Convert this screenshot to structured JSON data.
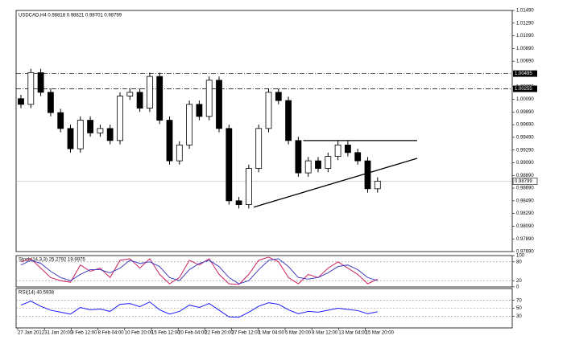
{
  "chart_data": [
    {
      "type": "candlestick",
      "title": "USDCAD,H4  0.98818 0.98821 0.98701 0.98799",
      "time_labels": [
        "27 Jan 2012",
        "31 Jan 20:00",
        "3 Feb 12:00",
        "8 Feb 04:00",
        "10 Feb 20:00",
        "15 Feb 12:00",
        "20 Feb 04:00",
        "22 Feb 20:00",
        "27 Feb 12:00",
        "1 Mar 04:00",
        "5 Mar 20:00",
        "8 Mar 12:00",
        "13 Mar 04:00",
        "15 Mar 20:00"
      ],
      "open": [
        1.001,
        1.0001,
        1.0051,
        1.002,
        0.9988,
        0.9963,
        0.9931,
        0.9976,
        0.9956,
        0.9963,
        0.9944,
        1.0014,
        1.002,
        0.9995,
        1.0045,
        0.9976,
        0.9912,
        0.9937,
        1.0001,
        0.9982,
        1.0039,
        0.9963,
        0.9849,
        0.9843,
        0.99,
        0.9963,
        1.002,
        1.0007,
        0.9944,
        0.9893,
        0.9912,
        0.99,
        0.9919,
        0.9937,
        0.9925,
        0.9912,
        0.9868
      ],
      "high": [
        1.0016,
        1.0057,
        1.0057,
        1.0026,
        0.9994,
        0.9969,
        0.9982,
        0.9982,
        0.9969,
        0.9969,
        1.002,
        1.0026,
        1.0026,
        1.0051,
        1.0051,
        0.9982,
        0.9943,
        1.0007,
        1.0007,
        1.0045,
        1.0045,
        0.9969,
        0.9855,
        0.9906,
        0.9969,
        1.0026,
        1.0026,
        1.0013,
        0.995,
        0.9918,
        0.9918,
        0.9925,
        0.9943,
        0.9943,
        0.9931,
        0.9918,
        0.9886
      ],
      "low": [
        0.9995,
        0.9995,
        1.0014,
        0.9982,
        0.9957,
        0.9925,
        0.9925,
        0.995,
        0.995,
        0.9938,
        0.9938,
        1.0008,
        0.9989,
        0.9989,
        0.997,
        0.9906,
        0.9906,
        0.9931,
        0.9976,
        0.9976,
        0.9957,
        0.9843,
        0.9837,
        0.9837,
        0.9894,
        0.9957,
        1.0001,
        0.9938,
        0.9887,
        0.9887,
        0.9894,
        0.9894,
        0.9913,
        0.9919,
        0.9906,
        0.9862,
        0.9862
      ],
      "close": [
        1.0001,
        1.0051,
        1.002,
        0.9988,
        0.9963,
        0.9931,
        0.9976,
        0.9956,
        0.9963,
        0.9944,
        1.0014,
        1.002,
        0.9995,
        1.0045,
        0.9976,
        0.9912,
        0.9937,
        1.0001,
        0.9982,
        1.0039,
        0.9963,
        0.9849,
        0.9843,
        0.99,
        0.9963,
        1.002,
        1.0007,
        0.9944,
        0.9893,
        0.9912,
        0.99,
        0.9919,
        0.9937,
        0.9925,
        0.9912,
        0.9868,
        0.988
      ],
      "ylim": [
        0.9769,
        1.0149
      ],
      "yticks": [
        {
          "value": 0.9769,
          "label": "0.97690"
        },
        {
          "value": 0.9789,
          "label": "0.97890"
        },
        {
          "value": 0.9809,
          "label": "0.98090"
        },
        {
          "value": 0.9829,
          "label": "0.98290"
        },
        {
          "value": 0.9849,
          "label": "0.98490"
        },
        {
          "value": 0.9869,
          "label": "0.98690"
        },
        {
          "value": 0.9889,
          "label": "0.98890"
        },
        {
          "value": 0.9909,
          "label": "0.99090"
        },
        {
          "value": 0.9929,
          "label": "0.99290"
        },
        {
          "value": 0.9949,
          "label": "0.99490"
        },
        {
          "value": 0.9969,
          "label": "0.99690"
        },
        {
          "value": 0.9989,
          "label": "0.99890"
        },
        {
          "value": 1.0009,
          "label": "1.00090"
        },
        {
          "value": 1.0029,
          "label": "1.00290"
        },
        {
          "value": 1.0069,
          "label": "1.00690"
        },
        {
          "value": 1.0089,
          "label": "1.00890"
        },
        {
          "value": 1.0109,
          "label": "1.01090"
        },
        {
          "value": 1.0129,
          "label": "1.01290"
        },
        {
          "value": 1.0149,
          "label": "1.01490"
        }
      ],
      "levels": [
        {
          "value": 1.00495,
          "label": "1.00495"
        },
        {
          "value": 1.00255,
          "label": "1.00255"
        }
      ],
      "last": {
        "value": 0.98799,
        "label": "0.98799"
      },
      "trendlines": [
        {
          "x": [
            23.5,
            40
          ],
          "y": [
            0.9839,
            0.9916
          ]
        },
        {
          "x": [
            28.5,
            40
          ],
          "y": [
            0.9944,
            0.9944
          ]
        }
      ]
    },
    {
      "type": "line",
      "title": "Stoch(14,3,3) 25.2792 19.9975",
      "ylim": [
        0,
        100
      ],
      "yticks": [
        0,
        20,
        80,
        100
      ],
      "grid_levels": [
        20,
        80
      ],
      "series": [
        {
          "color": "#d02060",
          "values": [
            80,
            90,
            60,
            30,
            20,
            15,
            70,
            50,
            60,
            30,
            85,
            90,
            60,
            90,
            40,
            10,
            30,
            85,
            70,
            90,
            40,
            10,
            8,
            40,
            85,
            95,
            80,
            30,
            10,
            40,
            30,
            60,
            80,
            60,
            40,
            10,
            25
          ]
        },
        {
          "color": "#4040c0",
          "values": [
            70,
            85,
            75,
            50,
            30,
            20,
            40,
            55,
            55,
            45,
            60,
            85,
            75,
            80,
            65,
            30,
            20,
            55,
            75,
            85,
            65,
            30,
            10,
            20,
            55,
            85,
            90,
            65,
            30,
            25,
            30,
            45,
            65,
            70,
            55,
            30,
            20
          ]
        }
      ]
    },
    {
      "type": "line",
      "title": "RSI(14) 40.5938",
      "ylim": [
        0,
        100
      ],
      "yticks": [
        30,
        50,
        70
      ],
      "grid_levels": [
        30,
        50,
        70
      ],
      "series": [
        {
          "color": "#1a1aff",
          "values": [
            58,
            68,
            55,
            45,
            40,
            35,
            52,
            46,
            48,
            42,
            60,
            62,
            54,
            66,
            46,
            35,
            42,
            58,
            52,
            62,
            45,
            28,
            27,
            40,
            55,
            64,
            60,
            46,
            36,
            42,
            40,
            45,
            50,
            47,
            44,
            36,
            41
          ]
        }
      ]
    }
  ]
}
